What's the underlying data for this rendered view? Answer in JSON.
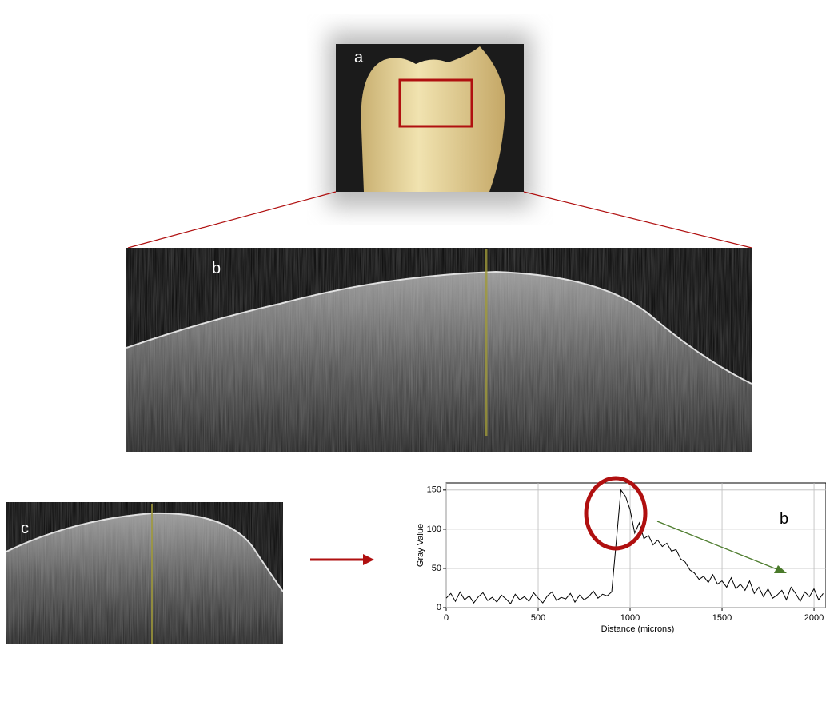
{
  "panel_labels": {
    "a": "a",
    "b": "b",
    "c": "c"
  },
  "chart_data": {
    "type": "line",
    "annotation": "b",
    "x_label": "Distance (microns)",
    "y_label": "Gray Value",
    "x": [
      0,
      25,
      50,
      75,
      100,
      125,
      150,
      175,
      200,
      225,
      250,
      275,
      300,
      325,
      350,
      375,
      400,
      425,
      450,
      475,
      500,
      525,
      550,
      575,
      600,
      625,
      650,
      675,
      700,
      725,
      750,
      775,
      800,
      825,
      850,
      875,
      900,
      925,
      950,
      975,
      1000,
      1025,
      1050,
      1075,
      1100,
      1125,
      1150,
      1175,
      1200,
      1225,
      1250,
      1275,
      1300,
      1325,
      1350,
      1375,
      1400,
      1425,
      1450,
      1475,
      1500,
      1525,
      1550,
      1575,
      1600,
      1625,
      1650,
      1675,
      1700,
      1725,
      1750,
      1775,
      1800,
      1825,
      1850,
      1875,
      1900,
      1925,
      1950,
      1975,
      2000,
      2025,
      2050
    ],
    "series": [
      {
        "name": "Gray Value",
        "color": "#000000",
        "values": [
          12,
          18,
          8,
          20,
          10,
          15,
          6,
          14,
          19,
          9,
          13,
          7,
          16,
          11,
          5,
          17,
          10,
          14,
          8,
          19,
          12,
          6,
          15,
          20,
          9,
          13,
          11,
          18,
          7,
          16,
          10,
          14,
          21,
          12,
          17,
          15,
          20,
          85,
          150,
          142,
          125,
          95,
          108,
          88,
          92,
          80,
          86,
          78,
          82,
          72,
          74,
          62,
          58,
          48,
          44,
          36,
          40,
          32,
          42,
          30,
          34,
          26,
          38,
          24,
          30,
          22,
          34,
          18,
          26,
          14,
          24,
          12,
          16,
          22,
          10,
          26,
          18,
          8,
          20,
          14,
          24,
          10,
          18
        ]
      }
    ],
    "xlim": [
      0,
      2065
    ],
    "ylim": [
      0,
      159
    ],
    "xticks": [
      0,
      500,
      1000,
      1500,
      2000
    ],
    "yticks": [
      0,
      50,
      100,
      150
    ],
    "grid": true
  }
}
